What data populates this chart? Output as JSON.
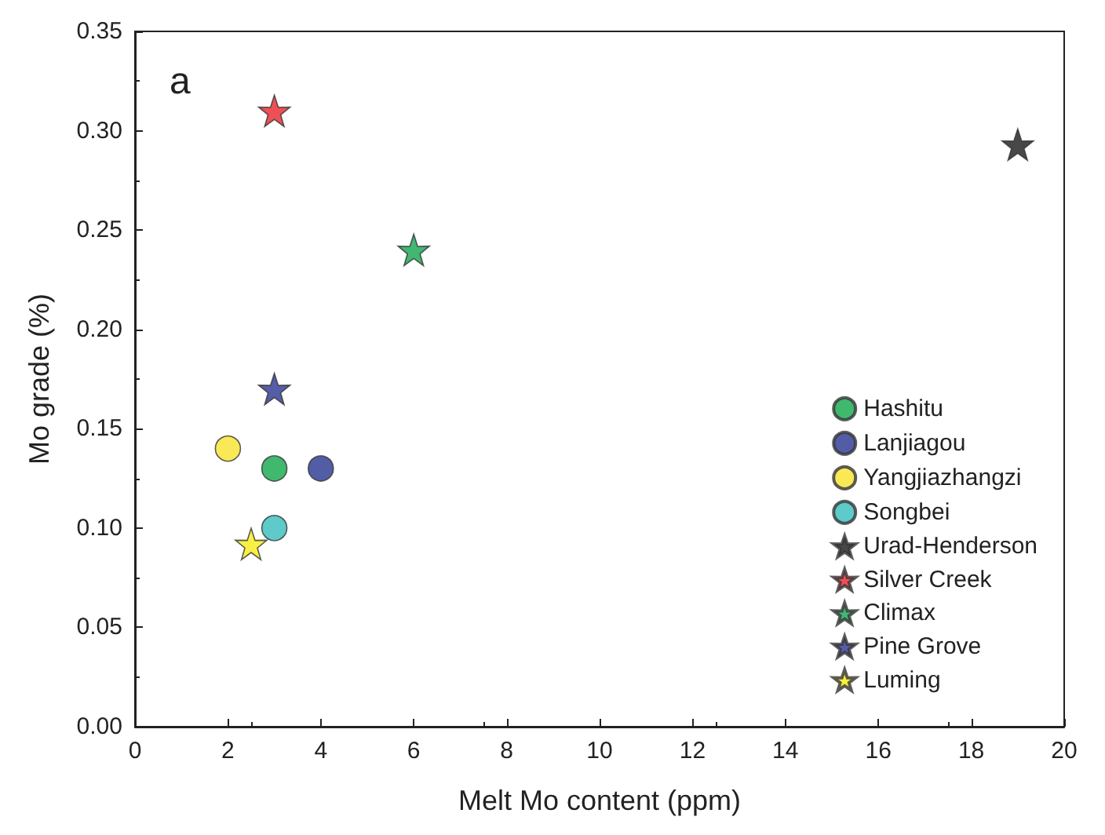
{
  "chart_data": {
    "type": "scatter",
    "xlabel": "Melt Mo content (ppm)",
    "ylabel": "Mo grade (%)",
    "annotations": [
      "a"
    ],
    "xlim": [
      0,
      20
    ],
    "xticks": [
      0,
      2,
      4,
      6,
      8,
      10,
      12,
      14,
      16,
      18,
      20
    ],
    "ylim": [
      0,
      0.35
    ],
    "yticks": [
      {
        "value": 0,
        "label": "0.00"
      },
      {
        "value": 0.05,
        "label": "0.05"
      },
      {
        "value": 0.1,
        "label": "0.10"
      },
      {
        "value": 0.15,
        "label": "0.15"
      },
      {
        "value": 0.2,
        "label": "0.20"
      },
      {
        "value": 0.25,
        "label": "0.25"
      },
      {
        "value": 0.3,
        "label": "0.30"
      },
      {
        "value": 0.35,
        "label": "0.35"
      }
    ],
    "grid": false,
    "legend": "bottom right",
    "series": [
      {
        "name": "Hashitu",
        "color": "#10a84a",
        "marker": "circle",
        "x": [
          3
        ],
        "values": [
          0.13
        ]
      },
      {
        "name": "Lanjiagou",
        "color": "#27358f",
        "marker": "circle",
        "x": [
          4
        ],
        "values": [
          0.13
        ]
      },
      {
        "name": "Yangjiazhangzi",
        "color": "#f8e32c",
        "marker": "circle",
        "x": [
          2
        ],
        "values": [
          0.14
        ]
      },
      {
        "name": "Songbei",
        "color": "#36bdbd",
        "marker": "circle",
        "x": [
          3
        ],
        "values": [
          0.1
        ]
      },
      {
        "name": "Urad-Henderson",
        "color": "#1a1a1a",
        "marker": "star",
        "x": [
          19
        ],
        "values": [
          0.293
        ]
      },
      {
        "name": "Silver Creek",
        "color": "#e8242a",
        "marker": "star",
        "x": [
          3
        ],
        "values": [
          0.31
        ]
      },
      {
        "name": "Climax",
        "color": "#12a550",
        "marker": "star",
        "x": [
          6
        ],
        "values": [
          0.24
        ]
      },
      {
        "name": "Pine Grove",
        "color": "#2a3590",
        "marker": "star",
        "x": [
          3
        ],
        "values": [
          0.17
        ]
      },
      {
        "name": "Luming",
        "color": "#f6ee14",
        "marker": "star",
        "x": [
          2.5
        ],
        "values": [
          0.092
        ]
      }
    ]
  }
}
